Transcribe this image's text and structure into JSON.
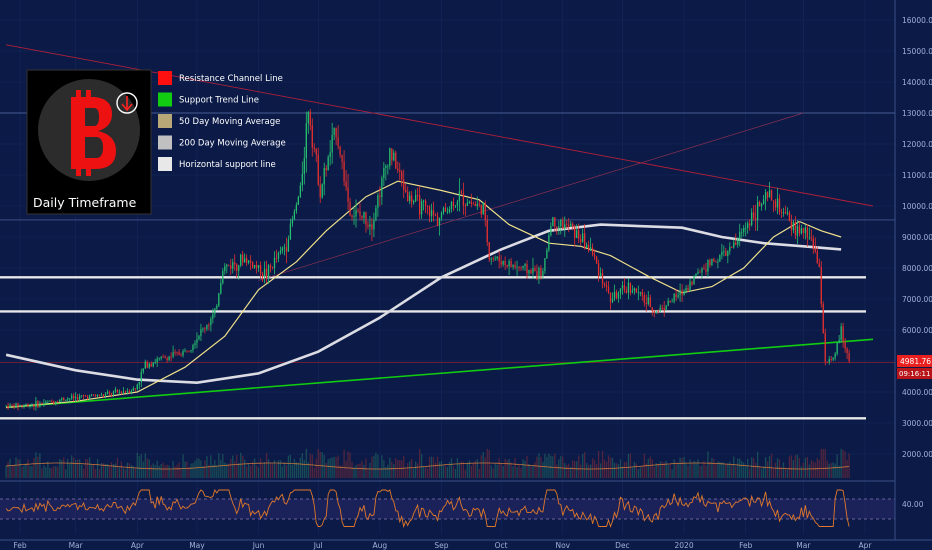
{
  "chart_data": {
    "type": "candlestick",
    "title": "",
    "timeframe_label": "Daily Timeframe",
    "y_axis": {
      "min": 2000,
      "max": 16500,
      "ticks": [
        2000,
        3000,
        4000,
        5000,
        6000,
        7000,
        8000,
        9000,
        10000,
        11000,
        12000,
        13000,
        14000,
        15000,
        16000
      ],
      "tick_labels": [
        "2000.00",
        "3000.00",
        "4000.00",
        "5000.00",
        "6000.00",
        "7000.00",
        "8000.00",
        "9000.00",
        "10000.00",
        "11000.00",
        "12000.00",
        "13000.00",
        "14000.00",
        "15000.00",
        "16000.00"
      ]
    },
    "x_axis": {
      "labels": [
        "Feb",
        "Mar",
        "Apr",
        "May",
        "Jun",
        "Jul",
        "Aug",
        "Sep",
        "Oct",
        "Nov",
        "Dec",
        "2020",
        "Feb",
        "Mar",
        "Apr"
      ],
      "dates": [
        "2019-02-01",
        "2019-03-01",
        "2019-04-01",
        "2019-05-01",
        "2019-06-01",
        "2019-07-01",
        "2019-08-01",
        "2019-09-01",
        "2019-10-01",
        "2019-11-01",
        "2019-12-01",
        "2020-01-01",
        "2020-02-01",
        "2020-03-01",
        "2020-04-01"
      ]
    },
    "last_price_label": "4981.76",
    "countdown_label": "09:16:11",
    "rsi_label": "40.00",
    "legend": [
      {
        "label": "Resistance Channel Line",
        "color": "#ff1010"
      },
      {
        "label": "Support Trend Line",
        "color": "#11cc11"
      },
      {
        "label": "50 Day Moving Average",
        "color": "#b8a878"
      },
      {
        "label": "200 Day Moving Average",
        "color": "#c0c0c0"
      },
      {
        "label": "Horizontal support line",
        "color": "#e8e8e8"
      }
    ],
    "horizontal_support_levels": [
      7700,
      6600,
      3150
    ],
    "thin_horizontal_levels": [
      13000,
      9550,
      4950
    ],
    "support_trend_line": {
      "from": {
        "date": "2019-01-25",
        "price": 3500
      },
      "to": {
        "date": "2020-04-05",
        "price": 5700
      }
    },
    "resistance_channel_line": {
      "from": {
        "date": "2019-01-25",
        "price": 15200
      },
      "to": {
        "date": "2020-04-05",
        "price": 10000
      }
    },
    "price_path": [
      [
        "2019-01-25",
        3550
      ],
      [
        "2019-02-10",
        3600
      ],
      [
        "2019-02-25",
        3800
      ],
      [
        "2019-03-15",
        3900
      ],
      [
        "2019-03-31",
        4100
      ],
      [
        "2019-04-05",
        4900
      ],
      [
        "2019-04-25",
        5300
      ],
      [
        "2019-05-10",
        6500
      ],
      [
        "2019-05-14",
        8000
      ],
      [
        "2019-05-25",
        8300
      ],
      [
        "2019-06-05",
        7800
      ],
      [
        "2019-06-15",
        8800
      ],
      [
        "2019-06-22",
        10500
      ],
      [
        "2019-06-26",
        13200
      ],
      [
        "2019-07-02",
        10500
      ],
      [
        "2019-07-10",
        12500
      ],
      [
        "2019-07-17",
        9800
      ],
      [
        "2019-07-28",
        9500
      ],
      [
        "2019-08-06",
        11800
      ],
      [
        "2019-08-15",
        10300
      ],
      [
        "2019-08-30",
        9600
      ],
      [
        "2019-09-10",
        10300
      ],
      [
        "2019-09-22",
        9900
      ],
      [
        "2019-09-25",
        8400
      ],
      [
        "2019-10-05",
        8100
      ],
      [
        "2019-10-22",
        7800
      ],
      [
        "2019-10-26",
        9500
      ],
      [
        "2019-11-05",
        9300
      ],
      [
        "2019-11-15",
        8600
      ],
      [
        "2019-11-25",
        7000
      ],
      [
        "2019-12-05",
        7400
      ],
      [
        "2019-12-18",
        6600
      ],
      [
        "2019-12-31",
        7200
      ],
      [
        "2020-01-10",
        8000
      ],
      [
        "2020-01-25",
        8600
      ],
      [
        "2020-02-05",
        9800
      ],
      [
        "2020-02-13",
        10300
      ],
      [
        "2020-02-25",
        9300
      ],
      [
        "2020-03-05",
        9000
      ],
      [
        "2020-03-09",
        7900
      ],
      [
        "2020-03-12",
        5000
      ],
      [
        "2020-03-16",
        5000
      ],
      [
        "2020-03-20",
        6000
      ],
      [
        "2020-03-24",
        4981
      ]
    ],
    "ma50": [
      [
        "2019-01-25",
        3500
      ],
      [
        "2019-03-01",
        3700
      ],
      [
        "2019-04-01",
        4000
      ],
      [
        "2019-04-25",
        4800
      ],
      [
        "2019-05-15",
        5800
      ],
      [
        "2019-06-01",
        7300
      ],
      [
        "2019-06-20",
        8200
      ],
      [
        "2019-07-05",
        9200
      ],
      [
        "2019-07-25",
        10300
      ],
      [
        "2019-08-10",
        10800
      ],
      [
        "2019-09-01",
        10500
      ],
      [
        "2019-09-20",
        10200
      ],
      [
        "2019-10-05",
        9400
      ],
      [
        "2019-10-25",
        8800
      ],
      [
        "2019-11-10",
        8700
      ],
      [
        "2019-11-25",
        8400
      ],
      [
        "2019-12-15",
        7700
      ],
      [
        "2019-12-31",
        7200
      ],
      [
        "2020-01-15",
        7400
      ],
      [
        "2020-01-31",
        8000
      ],
      [
        "2020-02-15",
        9000
      ],
      [
        "2020-02-28",
        9500
      ],
      [
        "2020-03-10",
        9200
      ],
      [
        "2020-03-20",
        9000
      ]
    ],
    "ma200": [
      [
        "2019-01-25",
        5200
      ],
      [
        "2019-03-01",
        4700
      ],
      [
        "2019-04-01",
        4400
      ],
      [
        "2019-05-01",
        4300
      ],
      [
        "2019-06-01",
        4600
      ],
      [
        "2019-07-01",
        5300
      ],
      [
        "2019-08-01",
        6400
      ],
      [
        "2019-09-01",
        7700
      ],
      [
        "2019-10-01",
        8600
      ],
      [
        "2019-10-25",
        9200
      ],
      [
        "2019-11-20",
        9400
      ],
      [
        "2019-12-31",
        9300
      ],
      [
        "2020-01-20",
        9000
      ],
      [
        "2020-02-10",
        8800
      ],
      [
        "2020-03-01",
        8700
      ],
      [
        "2020-03-20",
        8600
      ]
    ],
    "volume": {
      "min": 0,
      "max": 1
    },
    "rsi": {
      "min": 0,
      "max": 100,
      "overbought": 70,
      "oversold": 30,
      "gridline": 40
    }
  }
}
